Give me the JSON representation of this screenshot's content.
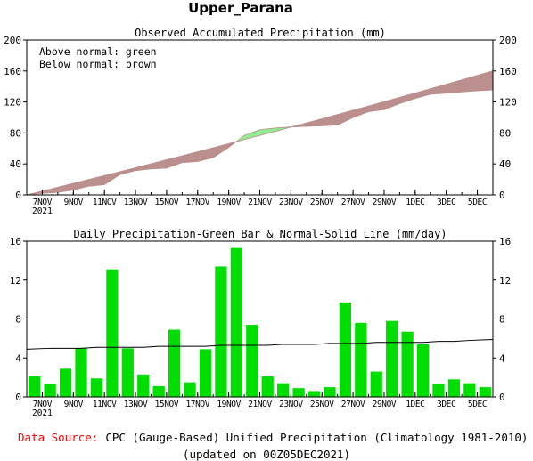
{
  "page": {
    "title": "Upper_Parana",
    "footer": {
      "source_label": "Data Source:",
      "source_text": "CPC (Gauge-Based) Unified Precipitation (Climatology 1981-2010)",
      "updated": "(updated on 00Z05DEC2021)"
    }
  },
  "colors": {
    "above_normal": "#90ee90",
    "below_normal": "#bc8f8f",
    "bar": "#00dd00",
    "normal_line": "#000000",
    "source_label": "#ff0000"
  },
  "chart_data": [
    {
      "type": "area",
      "title": "Observed Accumulated Precipitation (mm)",
      "legend": [
        "Above normal: green",
        "Below normal: brown"
      ],
      "legend_position": "top-left",
      "xlabel": "",
      "ylabel": "",
      "ylim": [
        0,
        200
      ],
      "y_ticks": [
        0,
        40,
        80,
        120,
        160,
        200
      ],
      "x_tick_labels": [
        "7NOV",
        "9NOV",
        "11NOV",
        "13NOV",
        "15NOV",
        "17NOV",
        "19NOV",
        "21NOV",
        "23NOV",
        "25NOV",
        "27NOV",
        "29NOV",
        "1DEC",
        "3DEC",
        "5DEC"
      ],
      "x_year_label": "2021",
      "x": [
        "6NOV",
        "7NOV",
        "8NOV",
        "9NOV",
        "10NOV",
        "11NOV",
        "12NOV",
        "13NOV",
        "14NOV",
        "15NOV",
        "16NOV",
        "17NOV",
        "18NOV",
        "19NOV",
        "20NOV",
        "21NOV",
        "22NOV",
        "23NOV",
        "24NOV",
        "25NOV",
        "26NOV",
        "27NOV",
        "28NOV",
        "29NOV",
        "30NOV",
        "1DEC",
        "2DEC",
        "3DEC",
        "4DEC",
        "5DEC"
      ],
      "series": [
        {
          "name": "Observed",
          "values": [
            2.1,
            3.4,
            6.3,
            11.3,
            13.2,
            26.3,
            31.3,
            33.6,
            34.7,
            41.7,
            43.2,
            48.1,
            61.5,
            76.8,
            84.2,
            86.3,
            87.7,
            88.6,
            89.2,
            90.2,
            99.9,
            107.5,
            110.1,
            117.9,
            124.6,
            130.0,
            131.3,
            133.1,
            134.5,
            135.5
          ]
        },
        {
          "name": "Normal",
          "values": [
            4.9,
            9.9,
            14.9,
            19.9,
            25.0,
            30.0,
            35.1,
            40.2,
            45.4,
            50.5,
            55.7,
            60.9,
            66.2,
            71.5,
            76.8,
            82.1,
            87.5,
            92.9,
            98.3,
            103.8,
            109.3,
            114.8,
            120.4,
            126.0,
            131.6,
            137.2,
            142.9,
            148.6,
            154.4,
            160.2
          ]
        }
      ]
    },
    {
      "type": "bar",
      "title": "Daily Precipitation-Green Bar & Normal-Solid Line (mm/day)",
      "xlabel": "",
      "ylabel": "",
      "ylim": [
        0,
        16
      ],
      "y_ticks": [
        0,
        4,
        8,
        12,
        16
      ],
      "x_tick_labels": [
        "7NOV",
        "9NOV",
        "11NOV",
        "13NOV",
        "15NOV",
        "17NOV",
        "19NOV",
        "21NOV",
        "23NOV",
        "25NOV",
        "27NOV",
        "29NOV",
        "1DEC",
        "3DEC",
        "5DEC"
      ],
      "x_year_label": "2021",
      "categories": [
        "6NOV",
        "7NOV",
        "8NOV",
        "9NOV",
        "10NOV",
        "11NOV",
        "12NOV",
        "13NOV",
        "14NOV",
        "15NOV",
        "16NOV",
        "17NOV",
        "18NOV",
        "19NOV",
        "20NOV",
        "21NOV",
        "22NOV",
        "23NOV",
        "24NOV",
        "25NOV",
        "26NOV",
        "27NOV",
        "28NOV",
        "29NOV",
        "30NOV",
        "1DEC",
        "2DEC",
        "3DEC",
        "4DEC",
        "5DEC"
      ],
      "series": [
        {
          "name": "Daily Precipitation",
          "values": [
            2.1,
            1.3,
            2.9,
            5.0,
            1.9,
            13.1,
            5.0,
            2.3,
            1.1,
            6.9,
            1.5,
            4.9,
            13.4,
            15.3,
            7.4,
            2.1,
            1.4,
            0.9,
            0.6,
            1.0,
            9.7,
            7.6,
            2.6,
            7.8,
            6.7,
            5.4,
            1.3,
            1.8,
            1.4,
            1.0
          ]
        },
        {
          "name": "Normal",
          "values": [
            4.9,
            5.0,
            5.0,
            5.0,
            5.1,
            5.1,
            5.1,
            5.1,
            5.2,
            5.2,
            5.2,
            5.2,
            5.3,
            5.3,
            5.3,
            5.3,
            5.4,
            5.4,
            5.4,
            5.5,
            5.5,
            5.5,
            5.6,
            5.6,
            5.6,
            5.6,
            5.7,
            5.7,
            5.8,
            5.9
          ]
        }
      ]
    }
  ]
}
